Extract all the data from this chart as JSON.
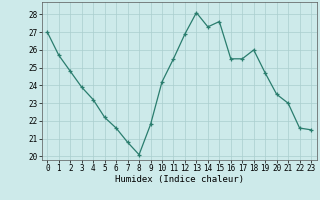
{
  "x": [
    0,
    1,
    2,
    3,
    4,
    5,
    6,
    7,
    8,
    9,
    10,
    11,
    12,
    13,
    14,
    15,
    16,
    17,
    18,
    19,
    20,
    21,
    22,
    23
  ],
  "y": [
    27.0,
    25.7,
    24.8,
    23.9,
    23.2,
    22.2,
    21.6,
    20.8,
    20.1,
    21.8,
    24.2,
    25.5,
    26.9,
    28.1,
    27.3,
    27.6,
    25.5,
    25.5,
    26.0,
    24.7,
    23.5,
    23.0,
    21.6,
    21.5
  ],
  "xlabel": "Humidex (Indice chaleur)",
  "ylim": [
    19.8,
    28.7
  ],
  "xlim": [
    -0.5,
    23.5
  ],
  "yticks": [
    20,
    21,
    22,
    23,
    24,
    25,
    26,
    27,
    28
  ],
  "xticks": [
    0,
    1,
    2,
    3,
    4,
    5,
    6,
    7,
    8,
    9,
    10,
    11,
    12,
    13,
    14,
    15,
    16,
    17,
    18,
    19,
    20,
    21,
    22,
    23
  ],
  "line_color": "#2a7d6e",
  "marker": "+",
  "bg_color": "#cdeaea",
  "grid_color": "#aacece",
  "xlabel_fontsize": 6.5,
  "tick_fontsize": 5.5,
  "marker_size": 3.5,
  "linewidth": 0.9
}
